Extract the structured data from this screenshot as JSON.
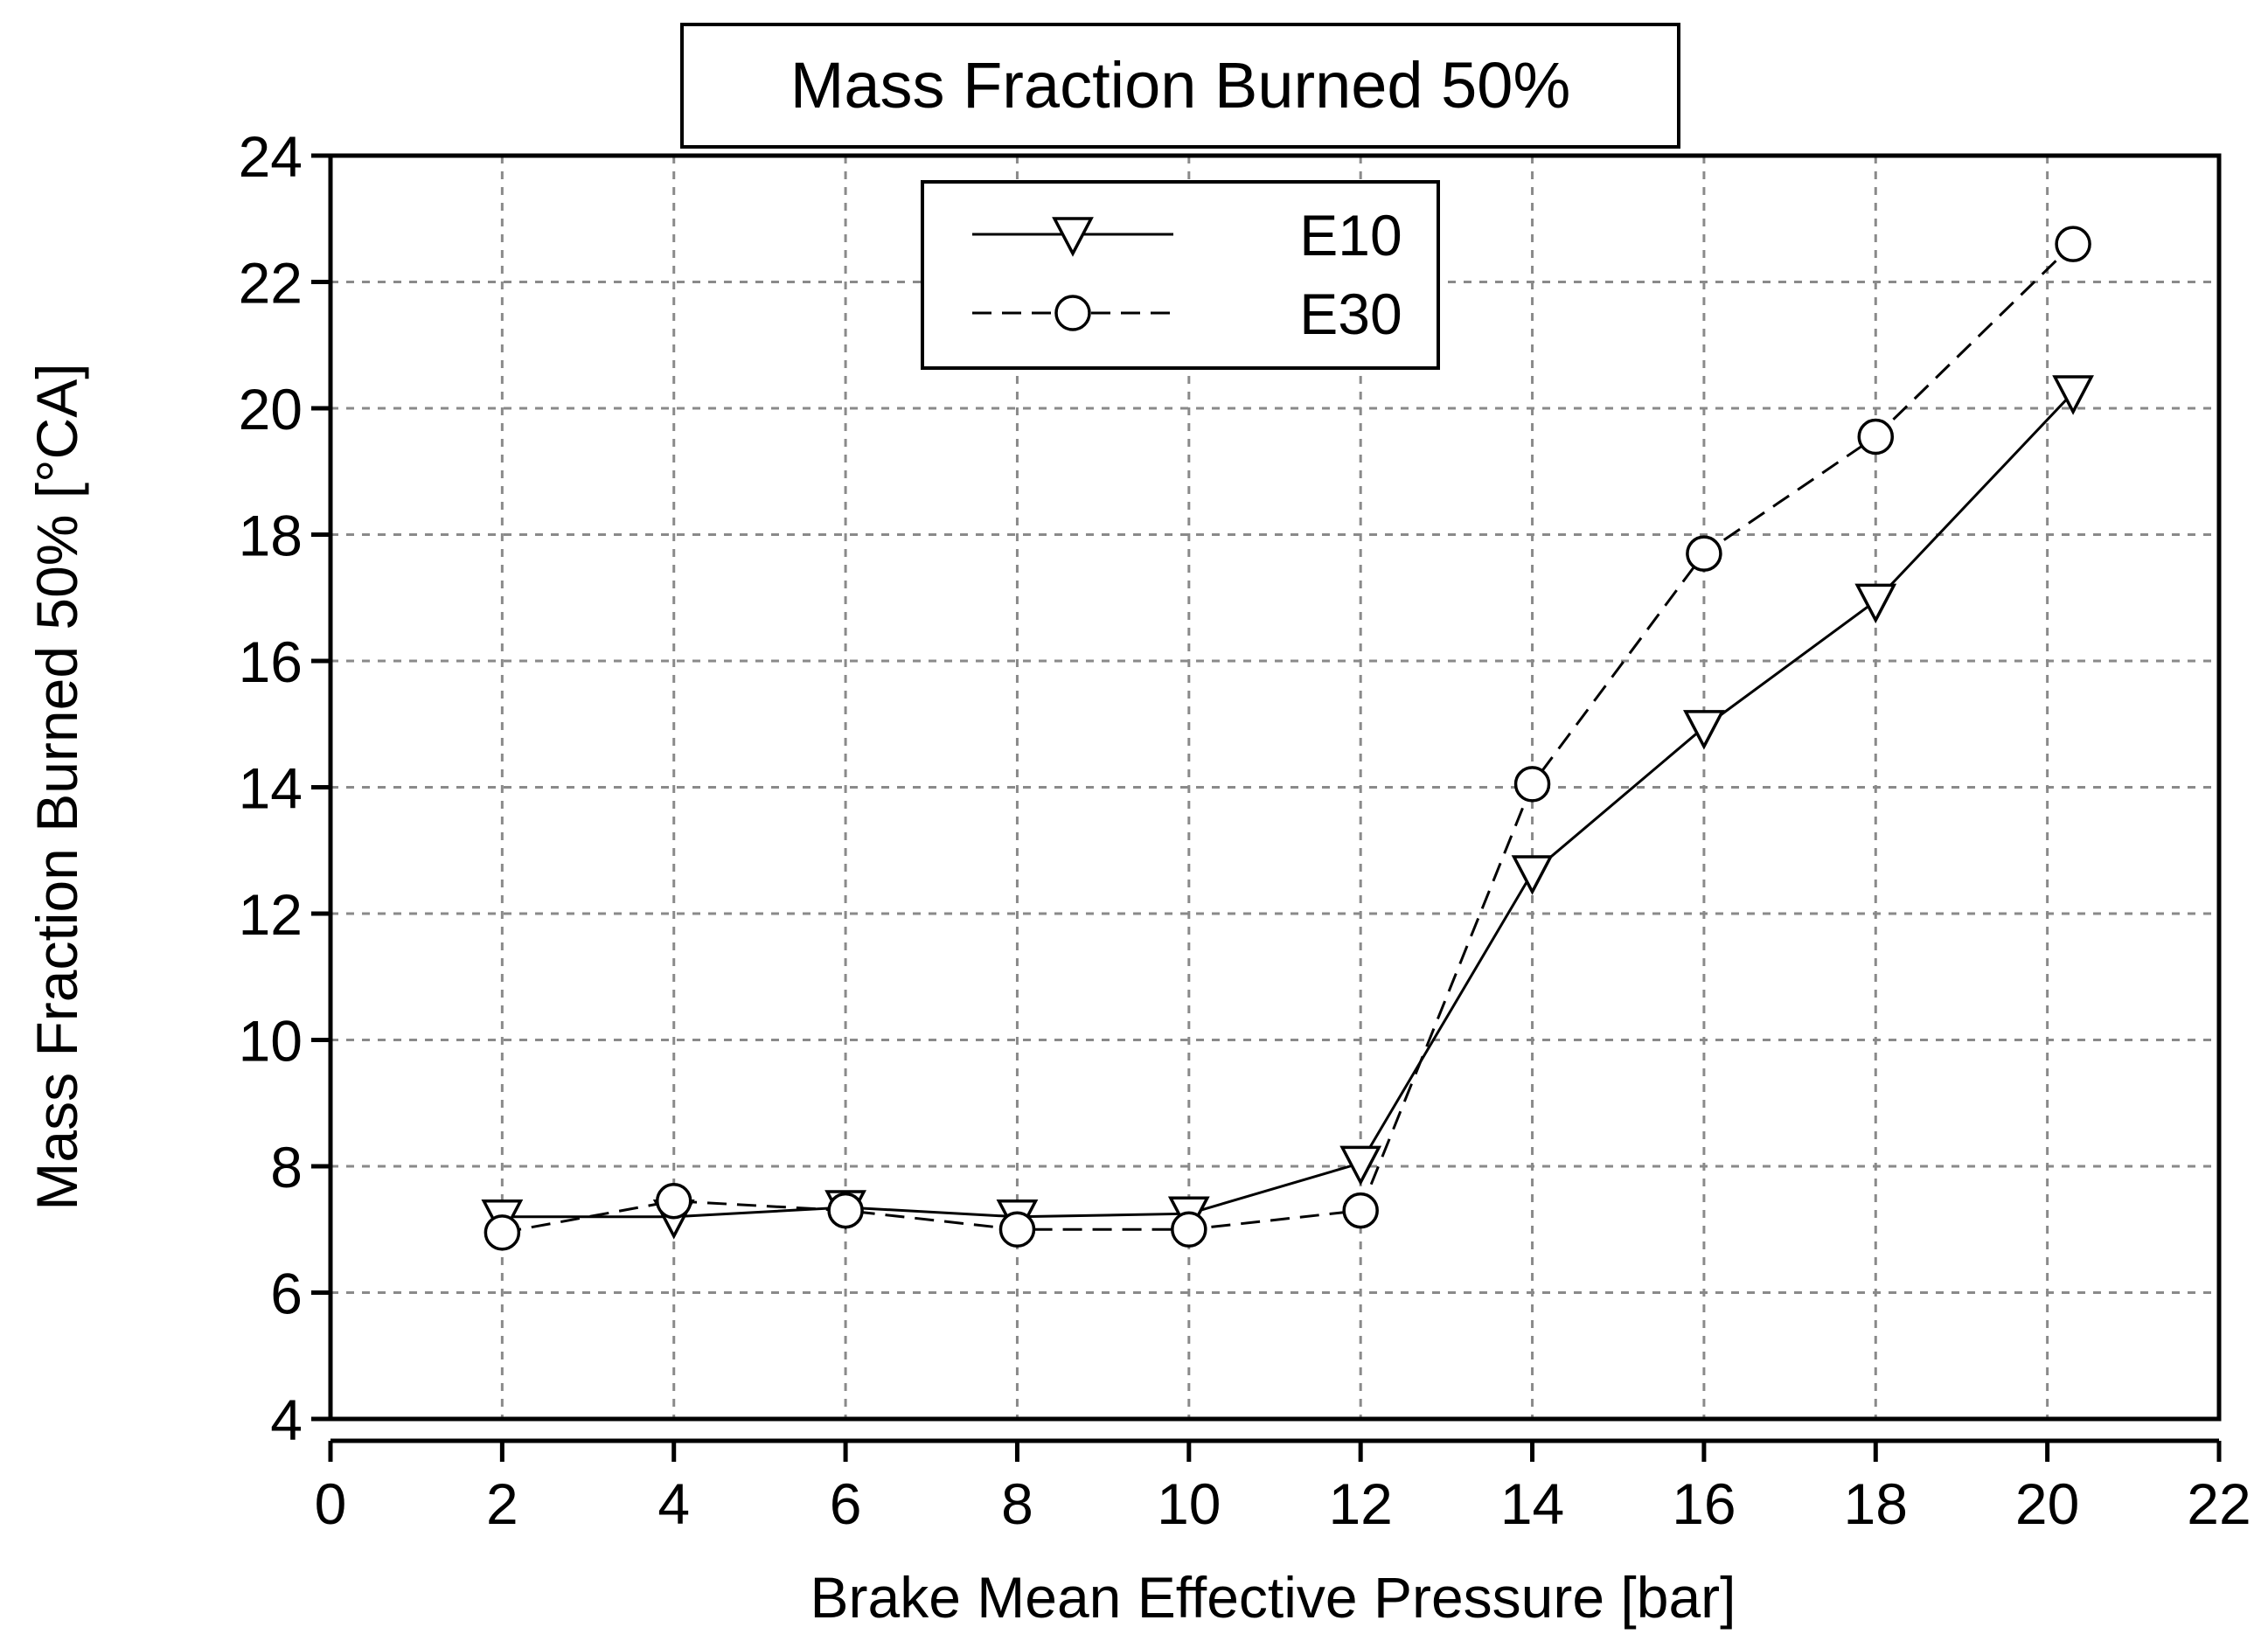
{
  "chart_data": {
    "type": "line",
    "title": "Mass Fraction Burned 50%",
    "xlabel": "Brake Mean Effective Pressure [bar]",
    "ylabel": "Mass Fraction Burned 50% [°CA]",
    "xlim": [
      0,
      22
    ],
    "ylim": [
      4,
      24
    ],
    "xticks": [
      0,
      2,
      4,
      6,
      8,
      10,
      12,
      14,
      16,
      18,
      20,
      22
    ],
    "yticks": [
      4,
      6,
      8,
      10,
      12,
      14,
      16,
      18,
      20,
      22,
      24
    ],
    "grid": true,
    "legend_position": "top-center",
    "series": [
      {
        "name": "E10",
        "marker": "triangle-down",
        "line_style": "solid",
        "x": [
          2,
          4,
          6,
          8,
          10,
          12,
          14,
          16,
          18,
          20.3
        ],
        "y": [
          7.2,
          7.2,
          7.35,
          7.2,
          7.25,
          8.05,
          12.65,
          14.95,
          16.95,
          20.25
        ]
      },
      {
        "name": "E30",
        "marker": "circle",
        "line_style": "dashed",
        "x": [
          2,
          4,
          6,
          8,
          10,
          12,
          14,
          16,
          18,
          20.3
        ],
        "y": [
          6.95,
          7.45,
          7.3,
          7.0,
          7.0,
          7.3,
          14.05,
          17.7,
          19.55,
          22.6
        ]
      }
    ]
  }
}
